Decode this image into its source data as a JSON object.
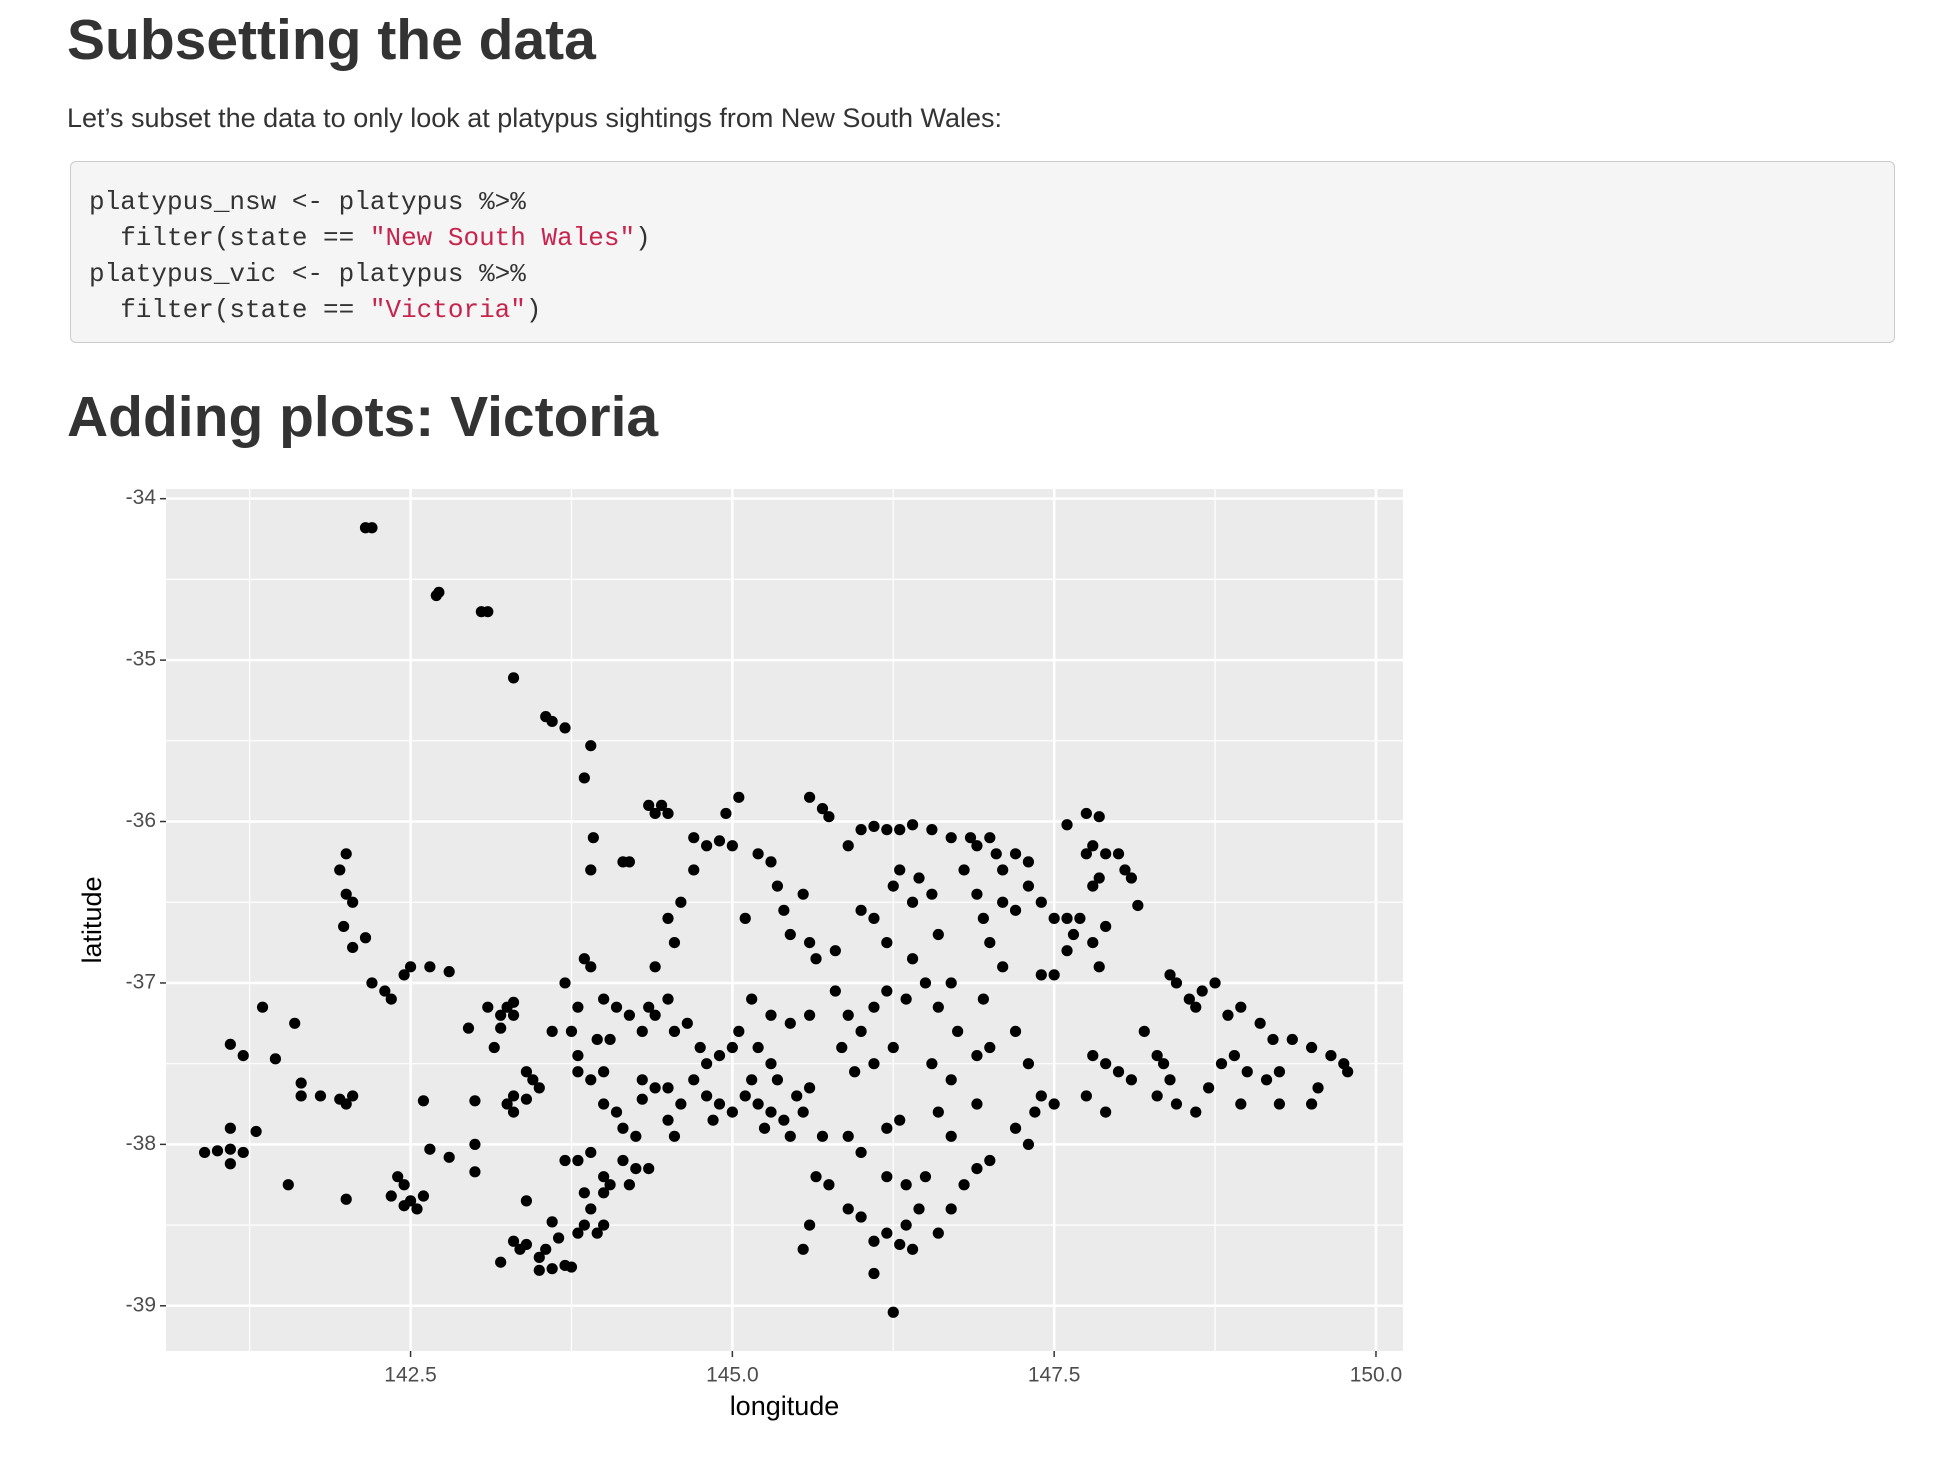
{
  "subsetting": {
    "heading": "Subsetting the data",
    "text": "Let’s subset the data to only look at platypus sightings from New South Wales:",
    "code": [
      [
        "platypus_nsw <- platypus %>%"
      ],
      [
        "  filter(state == ",
        "\"New South Wales\"",
        ")"
      ],
      [
        "platypus_vic <- platypus %>%"
      ],
      [
        "  filter(state == ",
        "\"Victoria\"",
        ")"
      ]
    ]
  },
  "plots": {
    "heading": "Adding plots: Victoria"
  },
  "chart_data": {
    "type": "scatter",
    "xlabel": "longitude",
    "ylabel": "latitude",
    "color": "#000000",
    "background": "#ebebeb",
    "grid": true,
    "xlim": [
      140.6,
      150.21
    ],
    "ylim": [
      -39.28,
      -33.94
    ],
    "xticks": [
      142.5,
      {
        "value": 145,
        "label": "145.0"
      },
      147.5,
      {
        "value": 150,
        "label": "150.0"
      }
    ],
    "yticks": [
      -34,
      -35,
      -36,
      -37,
      -38,
      -39
    ],
    "x": [
      142.2,
      142.15,
      142.7,
      142.72,
      143.1,
      143.05,
      143.3,
      143.55,
      143.6,
      143.7,
      143.9,
      143.85,
      143.92,
      143.9,
      142.0,
      141.95,
      142.0,
      142.05,
      141.98,
      142.05,
      142.15,
      141.35,
      141.2,
      141.1,
      141.6,
      141.45,
      141.65,
      141.65,
      141.8,
      141.95,
      142.0,
      142.05,
      141.1,
      141.3,
      140.9,
      141.0,
      141.1,
      141.2,
      141.1,
      141.55,
      142.0,
      142.2,
      142.3,
      142.35,
      142.5,
      142.45,
      142.65,
      142.8,
      142.6,
      143.0,
      142.65,
      142.8,
      143.0,
      143.0,
      142.4,
      142.45,
      142.35,
      142.45,
      142.55,
      142.6,
      142.5,
      143.1,
      143.2,
      143.25,
      143.2,
      143.3,
      143.15,
      142.95,
      143.3,
      143.4,
      143.45,
      143.5,
      143.3,
      143.25,
      143.3,
      143.4,
      143.4,
      143.3,
      143.2,
      143.35,
      143.4,
      143.5,
      143.55,
      143.65,
      143.8,
      143.85,
      143.7,
      143.6,
      143.5,
      143.75,
      143.6,
      143.9,
      144.0,
      144.05,
      143.85,
      143.95,
      144.0,
      143.7,
      143.8,
      143.9,
      144.0,
      144.15,
      144.25,
      144.35,
      144.2,
      143.6,
      143.75,
      143.8,
      143.7,
      143.85,
      143.9,
      144.0,
      144.1,
      143.95,
      144.05,
      143.8,
      143.8,
      143.9,
      144.0,
      144.2,
      144.3,
      144.35,
      144.4,
      144.5,
      144.55,
      144.3,
      144.4,
      144.5,
      144.3,
      144.1,
      144.0,
      144.15,
      144.25,
      144.5,
      144.55,
      144.6,
      144.35,
      144.4,
      144.45,
      144.5,
      144.15,
      144.2,
      144.5,
      144.55,
      144.4,
      144.6,
      144.7,
      144.7,
      144.8,
      144.9,
      145.0,
      144.95,
      145.05,
      144.65,
      144.75,
      144.8,
      144.9,
      145.0,
      144.7,
      144.8,
      144.9,
      145.0,
      144.85,
      145.1,
      145.2,
      145.3,
      145.4,
      145.5,
      145.35,
      145.25,
      145.45,
      145.15,
      145.3,
      145.6,
      145.55,
      145.2,
      145.05,
      145.15,
      145.3,
      145.45,
      145.6,
      145.1,
      145.2,
      145.3,
      145.35,
      145.4,
      145.45,
      145.6,
      145.65,
      145.8,
      145.55,
      145.6,
      145.7,
      145.75,
      145.9,
      146.0,
      146.1,
      146.2,
      146.3,
      146.4,
      146.55,
      145.8,
      145.9,
      146.0,
      146.1,
      146.2,
      146.35,
      145.85,
      145.95,
      146.1,
      146.25,
      145.7,
      145.9,
      146.0,
      146.2,
      146.3,
      145.65,
      145.75,
      145.9,
      146.0,
      145.6,
      145.55,
      146.1,
      146.2,
      146.3,
      146.4,
      146.35,
      146.45,
      146.6,
      146.7,
      146.1,
      146.25,
      146.2,
      146.35,
      146.5,
      146.8,
      146.0,
      146.1,
      146.2,
      146.25,
      146.3,
      146.45,
      146.4,
      146.55,
      146.6,
      146.4,
      146.5,
      146.6,
      146.7,
      146.75,
      146.55,
      146.7,
      146.9,
      146.9,
      146.6,
      146.7,
      146.7,
      146.85,
      146.9,
      147.0,
      147.05,
      147.2,
      147.3,
      147.1,
      146.8,
      146.9,
      146.95,
      147.0,
      147.1,
      147.2,
      147.3,
      147.4,
      147.5,
      147.6,
      147.1,
      146.95,
      147.0,
      147.2,
      147.3,
      147.4,
      147.5,
      147.35,
      147.2,
      147.0,
      146.9,
      147.3,
      147.4,
      147.5,
      147.6,
      147.65,
      147.7,
      147.6,
      147.75,
      147.85,
      147.8,
      147.9,
      148.0,
      148.05,
      147.75,
      147.85,
      147.8,
      148.1,
      148.15,
      147.9,
      147.8,
      147.85,
      147.8,
      147.9,
      148.0,
      148.1,
      147.75,
      147.9,
      148.2,
      148.3,
      148.35,
      148.4,
      148.4,
      148.45,
      148.55,
      148.65,
      148.6,
      148.75,
      148.3,
      148.45,
      148.6,
      148.7,
      148.8,
      148.9,
      148.85,
      148.95,
      149.0,
      148.95,
      149.1,
      149.2,
      149.25,
      149.25,
      149.35,
      149.5,
      149.55,
      149.65,
      149.75,
      149.78,
      149.5,
      149.15
    ],
    "values": [
      -34.18,
      -34.18,
      -34.6,
      -34.58,
      -34.7,
      -34.7,
      -35.11,
      -35.35,
      -35.38,
      -35.42,
      -35.53,
      -35.73,
      -36.1,
      -36.3,
      -36.2,
      -36.3,
      -36.45,
      -36.5,
      -36.65,
      -36.78,
      -36.72,
      -37.15,
      -37.45,
      -37.38,
      -37.25,
      -37.47,
      -37.62,
      -37.7,
      -37.7,
      -37.72,
      -37.75,
      -37.7,
      -37.9,
      -37.92,
      -38.05,
      -38.04,
      -38.03,
      -38.05,
      -38.12,
      -38.25,
      -38.34,
      -37.0,
      -37.05,
      -37.1,
      -36.9,
      -36.95,
      -36.9,
      -36.93,
      -37.73,
      -37.73,
      -38.03,
      -38.08,
      -38.0,
      -38.17,
      -38.2,
      -38.25,
      -38.32,
      -38.38,
      -38.4,
      -38.32,
      -38.35,
      -37.15,
      -37.2,
      -37.15,
      -37.28,
      -37.2,
      -37.4,
      -37.28,
      -37.12,
      -37.55,
      -37.6,
      -37.65,
      -37.7,
      -37.75,
      -37.8,
      -37.72,
      -38.35,
      -38.6,
      -38.73,
      -38.65,
      -38.62,
      -38.7,
      -38.65,
      -38.58,
      -38.55,
      -38.5,
      -38.75,
      -38.77,
      -38.78,
      -38.76,
      -38.48,
      -38.4,
      -38.3,
      -38.25,
      -38.3,
      -38.55,
      -38.5,
      -38.1,
      -38.1,
      -38.05,
      -38.2,
      -38.1,
      -38.15,
      -38.15,
      -38.25,
      -37.3,
      -37.3,
      -37.15,
      -37.0,
      -36.85,
      -36.9,
      -37.1,
      -37.15,
      -37.35,
      -37.35,
      -37.45,
      -37.55,
      -37.6,
      -37.55,
      -37.2,
      -37.3,
      -37.15,
      -37.2,
      -37.1,
      -37.3,
      -37.6,
      -37.65,
      -37.65,
      -37.72,
      -37.8,
      -37.75,
      -37.9,
      -37.95,
      -37.85,
      -37.95,
      -37.75,
      -35.9,
      -35.95,
      -35.9,
      -35.95,
      -36.25,
      -36.25,
      -36.6,
      -36.75,
      -36.9,
      -36.5,
      -36.3,
      -36.1,
      -36.15,
      -36.12,
      -36.15,
      -35.95,
      -35.85,
      -37.25,
      -37.4,
      -37.5,
      -37.45,
      -37.4,
      -37.6,
      -37.7,
      -37.75,
      -37.8,
      -37.85,
      -37.7,
      -37.75,
      -37.8,
      -37.85,
      -37.7,
      -37.6,
      -37.9,
      -37.95,
      -37.6,
      -37.5,
      -37.65,
      -37.8,
      -37.4,
      -37.3,
      -37.1,
      -37.2,
      -37.25,
      -37.2,
      -36.6,
      -36.2,
      -36.25,
      -36.4,
      -36.55,
      -36.7,
      -36.75,
      -36.85,
      -36.8,
      -36.45,
      -35.85,
      -35.92,
      -35.97,
      -36.15,
      -36.05,
      -36.03,
      -36.05,
      -36.05,
      -36.02,
      -36.05,
      -37.05,
      -37.2,
      -37.3,
      -37.15,
      -37.05,
      -37.1,
      -37.4,
      -37.55,
      -37.5,
      -37.4,
      -37.95,
      -37.95,
      -38.05,
      -37.9,
      -37.85,
      -38.2,
      -38.25,
      -38.4,
      -38.45,
      -38.5,
      -38.65,
      -38.6,
      -38.55,
      -38.62,
      -38.65,
      -38.5,
      -38.4,
      -38.55,
      -38.4,
      -38.8,
      -39.04,
      -38.2,
      -38.25,
      -38.2,
      -38.25,
      -36.55,
      -36.6,
      -36.75,
      -36.4,
      -36.3,
      -36.35,
      -36.5,
      -36.45,
      -36.7,
      -36.85,
      -37.0,
      -37.15,
      -37.0,
      -37.3,
      -37.5,
      -37.6,
      -37.45,
      -37.75,
      -37.8,
      -37.95,
      -36.1,
      -36.1,
      -36.15,
      -36.1,
      -36.2,
      -36.2,
      -36.25,
      -36.3,
      -36.3,
      -36.45,
      -36.6,
      -36.75,
      -36.5,
      -36.55,
      -36.4,
      -36.5,
      -36.6,
      -36.6,
      -36.9,
      -37.1,
      -37.4,
      -37.3,
      -37.5,
      -37.7,
      -37.75,
      -37.8,
      -37.9,
      -38.1,
      -38.15,
      -38.0,
      -36.95,
      -36.95,
      -36.8,
      -36.7,
      -36.6,
      -36.02,
      -35.95,
      -35.97,
      -36.15,
      -36.2,
      -36.2,
      -36.3,
      -36.2,
      -36.35,
      -36.4,
      -36.35,
      -36.52,
      -36.65,
      -36.75,
      -36.9,
      -37.45,
      -37.5,
      -37.55,
      -37.6,
      -37.7,
      -37.8,
      -37.3,
      -37.45,
      -37.5,
      -37.6,
      -36.95,
      -37.0,
      -37.1,
      -37.05,
      -37.15,
      -37.0,
      -37.7,
      -37.75,
      -37.8,
      -37.65,
      -37.5,
      -37.45,
      -37.2,
      -37.15,
      -37.55,
      -37.75,
      -37.25,
      -37.35,
      -37.55,
      -37.75,
      -37.35,
      -37.4,
      -37.65,
      -37.45,
      -37.5,
      -37.55,
      -37.75,
      -37.6
    ]
  }
}
